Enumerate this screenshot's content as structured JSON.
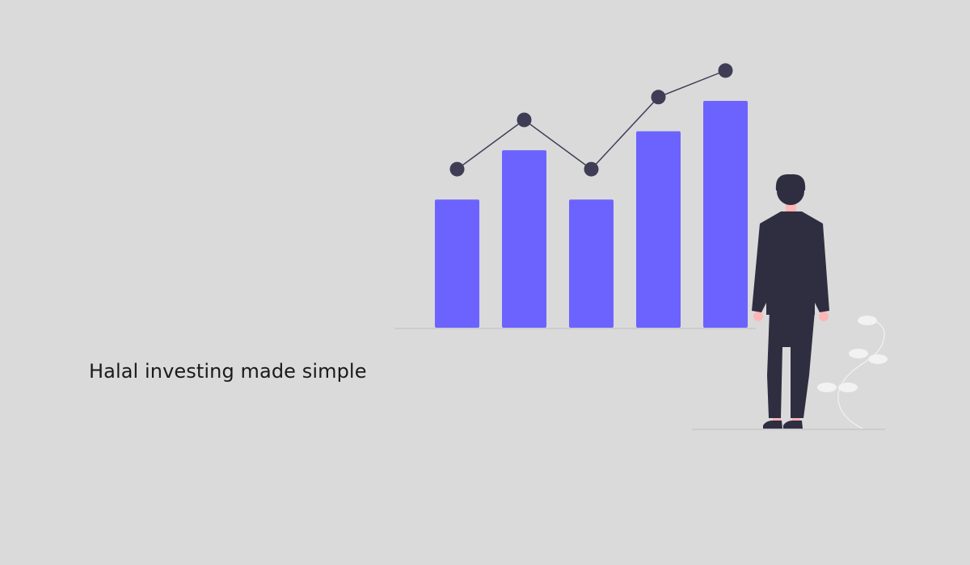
{
  "tagline": "Halal investing made simple",
  "colors": {
    "background": "#dadada",
    "text": "#1a1a1a",
    "bar": "#6c63ff",
    "line": "#3f3d56",
    "marker": "#3f3d56",
    "baseline": "#c7c7c7",
    "figure_dark": "#2f2e41",
    "skin": "#ffb6b6",
    "plant": "#f2f2f2"
  },
  "illustration": {
    "chart_bars": [
      0.34,
      0.47,
      0.34,
      0.52,
      0.6
    ],
    "trend_markers": [
      0.42,
      0.55,
      0.42,
      0.61,
      0.68
    ],
    "icons": [
      "bar-chart-icon",
      "person-icon",
      "plant-icon"
    ]
  }
}
